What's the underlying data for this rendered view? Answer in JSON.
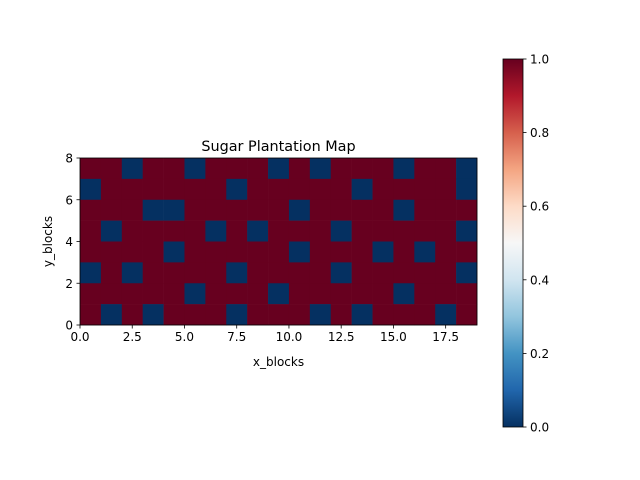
{
  "chart_data": {
    "type": "heatmap",
    "title": "Sugar Plantation Map",
    "xlabel": "x_blocks",
    "ylabel": "y_blocks",
    "xlim": [
      0,
      19
    ],
    "ylim": [
      0,
      8
    ],
    "x_ticks": [
      "0.0",
      "2.5",
      "5.0",
      "7.5",
      "10.0",
      "12.5",
      "15.0",
      "17.5"
    ],
    "y_ticks": [
      "0",
      "2",
      "4",
      "6",
      "8"
    ],
    "colormap": "RdBu_r",
    "color_low": "#053061",
    "color_high": "#67001f",
    "colorbar": {
      "range": [
        0.0,
        1.0
      ],
      "ticks": [
        "0.0",
        "0.2",
        "0.4",
        "0.6",
        "0.8",
        "1.0"
      ],
      "placement": "right"
    },
    "grid": false,
    "values_rows_top_to_bottom": [
      [
        1,
        1,
        0,
        1,
        1,
        0,
        1,
        1,
        1,
        0,
        1,
        0,
        1,
        1,
        1,
        0,
        1,
        1,
        0
      ],
      [
        0,
        1,
        1,
        1,
        1,
        1,
        1,
        0,
        1,
        1,
        1,
        1,
        1,
        0,
        1,
        1,
        1,
        1,
        0
      ],
      [
        1,
        1,
        1,
        0,
        0,
        1,
        1,
        1,
        1,
        1,
        0,
        1,
        1,
        1,
        1,
        0,
        1,
        1,
        1
      ],
      [
        1,
        0,
        1,
        1,
        1,
        1,
        0,
        1,
        0,
        1,
        1,
        1,
        0,
        1,
        1,
        1,
        1,
        1,
        0
      ],
      [
        1,
        1,
        1,
        1,
        0,
        1,
        1,
        1,
        1,
        1,
        0,
        1,
        1,
        1,
        0,
        1,
        0,
        1,
        1
      ],
      [
        0,
        1,
        0,
        1,
        1,
        1,
        1,
        0,
        1,
        1,
        1,
        1,
        0,
        1,
        1,
        1,
        1,
        1,
        0
      ],
      [
        1,
        1,
        1,
        1,
        1,
        0,
        1,
        1,
        1,
        0,
        1,
        1,
        1,
        1,
        1,
        0,
        1,
        1,
        1
      ],
      [
        1,
        0,
        1,
        0,
        1,
        1,
        1,
        0,
        1,
        1,
        1,
        0,
        1,
        0,
        1,
        1,
        1,
        0,
        1
      ]
    ]
  }
}
